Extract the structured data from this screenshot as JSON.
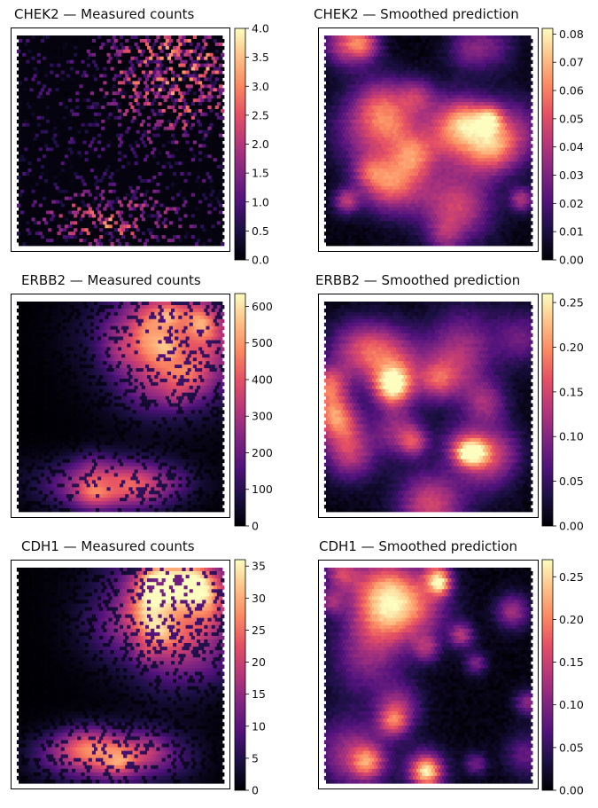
{
  "chart_data": [
    {
      "type": "heatmap",
      "title": "CHEK2 — Measured counts",
      "colormap": "magma",
      "colorbar_ticks": [
        "0.0",
        "0.5",
        "1.0",
        "1.5",
        "2.0",
        "2.5",
        "3.0",
        "3.5",
        "4.0"
      ],
      "clim": [
        0,
        4
      ],
      "grid": false
    },
    {
      "type": "heatmap",
      "title": "CHEK2 — Smoothed prediction",
      "colormap": "magma",
      "colorbar_ticks": [
        "0.00",
        "0.01",
        "0.02",
        "0.03",
        "0.04",
        "0.05",
        "0.06",
        "0.07",
        "0.08"
      ],
      "clim": [
        0,
        0.082
      ],
      "grid": false
    },
    {
      "type": "heatmap",
      "title": "ERBB2 — Measured counts",
      "colormap": "magma",
      "colorbar_ticks": [
        "0",
        "100",
        "200",
        "300",
        "400",
        "500",
        "600"
      ],
      "clim": [
        0,
        635
      ],
      "grid": false
    },
    {
      "type": "heatmap",
      "title": "ERBB2 — Smoothed prediction",
      "colormap": "magma",
      "colorbar_ticks": [
        "0.00",
        "0.05",
        "0.10",
        "0.15",
        "0.20",
        "0.25"
      ],
      "clim": [
        0,
        0.26
      ],
      "grid": false
    },
    {
      "type": "heatmap",
      "title": "CDH1 — Measured counts",
      "colormap": "magma",
      "colorbar_ticks": [
        "0",
        "5",
        "10",
        "15",
        "20",
        "25",
        "30",
        "35"
      ],
      "clim": [
        0,
        36
      ],
      "grid": false
    },
    {
      "type": "heatmap",
      "title": "CDH1 — Smoothed prediction",
      "colormap": "magma",
      "colorbar_ticks": [
        "0.00",
        "0.05",
        "0.10",
        "0.15",
        "0.20",
        "0.25"
      ],
      "clim": [
        0,
        0.27
      ],
      "grid": false
    }
  ]
}
